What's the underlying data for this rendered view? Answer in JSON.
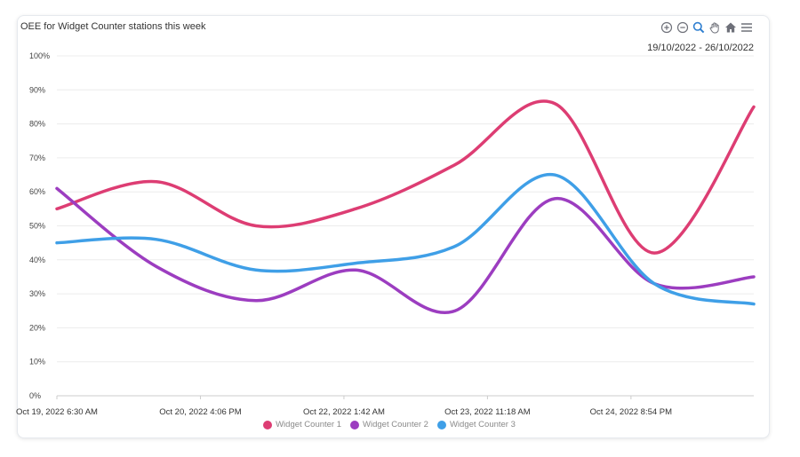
{
  "chart_data": {
    "type": "line",
    "title": "OEE for Widget Counter stations this week",
    "date_range": "19/10/2022 - 26/10/2022",
    "x_tick_labels": [
      "Oct 19, 2022 6:30 AM",
      "Oct 20, 2022 4:06 PM",
      "Oct 22, 2022 1:42 AM",
      "Oct 23, 2022 11:18 AM",
      "Oct 24, 2022 8:54 PM"
    ],
    "y_tick_labels": [
      "0%",
      "10%",
      "20%",
      "30%",
      "40%",
      "50%",
      "60%",
      "70%",
      "80%",
      "90%",
      "100%"
    ],
    "ylim": [
      0,
      100
    ],
    "x": [
      "2022-10-19 06:30",
      "2022-10-20 06:30",
      "2022-10-21 06:30",
      "2022-10-22 06:30",
      "2022-10-23 06:30",
      "2022-10-24 06:30",
      "2022-10-25 06:30",
      "2022-10-26 06:30"
    ],
    "series": [
      {
        "name": "Widget Counter 1",
        "color": "#dd3d73",
        "values": [
          55,
          63,
          50,
          55,
          68,
          86,
          42,
          85
        ]
      },
      {
        "name": "Widget Counter 2",
        "color": "#9c3dc0",
        "values": [
          61,
          38,
          28,
          37,
          25,
          58,
          33,
          35
        ]
      },
      {
        "name": "Widget Counter 3",
        "color": "#3f9fe7",
        "values": [
          45,
          46,
          37,
          39,
          44,
          65,
          33,
          27
        ]
      }
    ],
    "grid": "horizontal",
    "legend_position": "bottom-center"
  },
  "toolbar": {
    "icons": [
      "zoom-in-icon",
      "zoom-out-icon",
      "zoom-selection-icon",
      "pan-icon",
      "home-icon",
      "menu-icon"
    ],
    "active_color": "#2f7fd0",
    "icon_color": "#6e7079"
  }
}
